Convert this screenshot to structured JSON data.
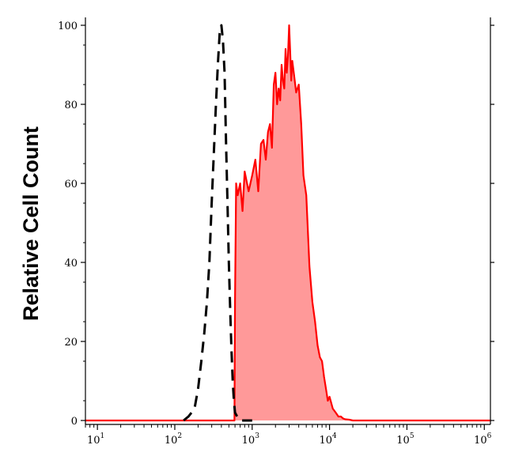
{
  "chart_data": {
    "type": "area",
    "title": "",
    "xlabel": "",
    "ylabel": "Relative Cell Count",
    "x_scale": "log",
    "xlim": [
      7,
      1200000
    ],
    "ylim": [
      -1,
      102
    ],
    "x_ticks": [
      {
        "base": "10",
        "exp": "1",
        "value": 10
      },
      {
        "base": "10",
        "exp": "2",
        "value": 100
      },
      {
        "base": "10",
        "exp": "3",
        "value": 1000
      },
      {
        "base": "10",
        "exp": "4",
        "value": 10000
      },
      {
        "base": "10",
        "exp": "5",
        "value": 100000
      },
      {
        "base": "10",
        "exp": "6",
        "value": 1000000
      }
    ],
    "y_ticks": [
      "0",
      "20",
      "40",
      "60",
      "80",
      "100"
    ],
    "grid": false,
    "legend": "none",
    "series": [
      {
        "style": "dashed",
        "color": "#000000",
        "fill": "none",
        "x": [
          130,
          150,
          165,
          180,
          200,
          220,
          240,
          260,
          280,
          300,
          320,
          340,
          360,
          380,
          400,
          420,
          440,
          460,
          480,
          500,
          520,
          540,
          560,
          580,
          600,
          640,
          700,
          800,
          1000
        ],
        "y": [
          0,
          1,
          2,
          3,
          8,
          15,
          22,
          30,
          40,
          55,
          68,
          80,
          90,
          98,
          100,
          96,
          88,
          70,
          55,
          40,
          28,
          18,
          10,
          5,
          2,
          1,
          0,
          0,
          0
        ]
      },
      {
        "style": "solid",
        "color": "#ff0000",
        "fill": "#ff9999",
        "x": [
          7,
          590,
          600,
          620,
          650,
          700,
          750,
          800,
          900,
          1000,
          1100,
          1200,
          1300,
          1400,
          1500,
          1600,
          1700,
          1800,
          1900,
          2000,
          2100,
          2200,
          2300,
          2400,
          2500,
          2600,
          2700,
          2800,
          2900,
          3000,
          3100,
          3200,
          3300,
          3500,
          3700,
          4000,
          4300,
          4600,
          5000,
          5500,
          6000,
          6500,
          7000,
          7500,
          8000,
          8500,
          9000,
          9500,
          10000,
          11000,
          12000,
          13000,
          14000,
          15000,
          16000,
          18000,
          20000,
          1200000
        ],
        "y": [
          0,
          0,
          30,
          60,
          57,
          60,
          53,
          63,
          58,
          62,
          66,
          58,
          70,
          71,
          66,
          73,
          75,
          69,
          85,
          88,
          80,
          84,
          81,
          90,
          86,
          84,
          94,
          88,
          92,
          100,
          93,
          86,
          91,
          87,
          83,
          85,
          75,
          62,
          57,
          39,
          30,
          25,
          19,
          16,
          15,
          11,
          8,
          5,
          6,
          3,
          2,
          1,
          1,
          0.5,
          0.3,
          0.2,
          0,
          0
        ]
      }
    ]
  }
}
